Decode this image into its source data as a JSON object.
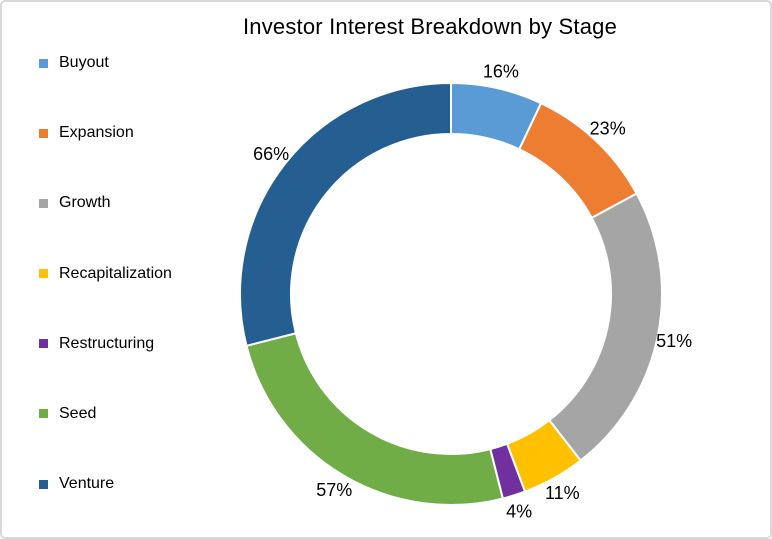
{
  "window": {
    "background_color": "#FFFFFF",
    "border_color": "#D9D9D9"
  },
  "chart_data": {
    "type": "pie",
    "subtype": "donut",
    "title": "Investor Interest Breakdown by Stage",
    "legend_position": "left",
    "direction": "clockwise",
    "start_angle_deg": 0,
    "donut_hole_ratio": 0.76,
    "gap_color": "#FFFFFF",
    "categories": [
      "Buyout",
      "Expansion",
      "Growth",
      "Recapitalization",
      "Restructuring",
      "Seed",
      "Venture"
    ],
    "values": [
      16,
      23,
      51,
      11,
      4,
      57,
      66
    ],
    "unit": "%",
    "data_labels": [
      "16%",
      "23%",
      "51%",
      "11%",
      "4%",
      "57%",
      "66%"
    ],
    "colors": [
      "#5B9BD5",
      "#ED7D31",
      "#A5A5A5",
      "#FFC000",
      "#7030A0",
      "#70AD47",
      "#255E91"
    ],
    "label_color": "#000000",
    "title_color": "#000000"
  }
}
